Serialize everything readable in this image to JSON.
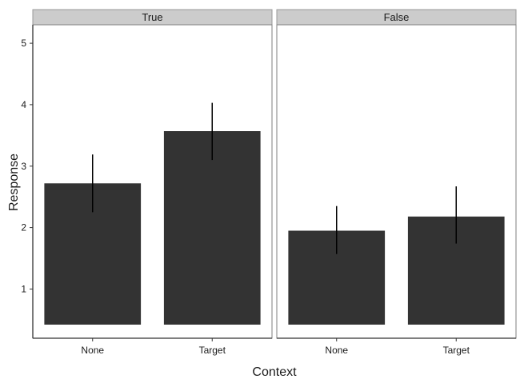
{
  "chart_data": {
    "type": "bar",
    "xlabel": "Context",
    "ylabel": "Response",
    "y_ticks": [
      "1",
      "2",
      "3",
      "4",
      "5"
    ],
    "ylim": [
      0.2,
      5.3
    ],
    "grid": false,
    "bar_color": "#333333",
    "panel_border_color": "#7f7f7f",
    "strip_fill": "#cccccc",
    "categories": [
      "None",
      "Target"
    ],
    "facets": [
      {
        "label": "True",
        "values": [
          2.72,
          3.57
        ],
        "error_low": [
          2.25,
          3.1
        ],
        "error_high": [
          3.19,
          4.03
        ]
      },
      {
        "label": "False",
        "values": [
          1.95,
          2.18
        ],
        "error_low": [
          1.57,
          1.74
        ],
        "error_high": [
          2.35,
          2.67
        ]
      }
    ]
  }
}
